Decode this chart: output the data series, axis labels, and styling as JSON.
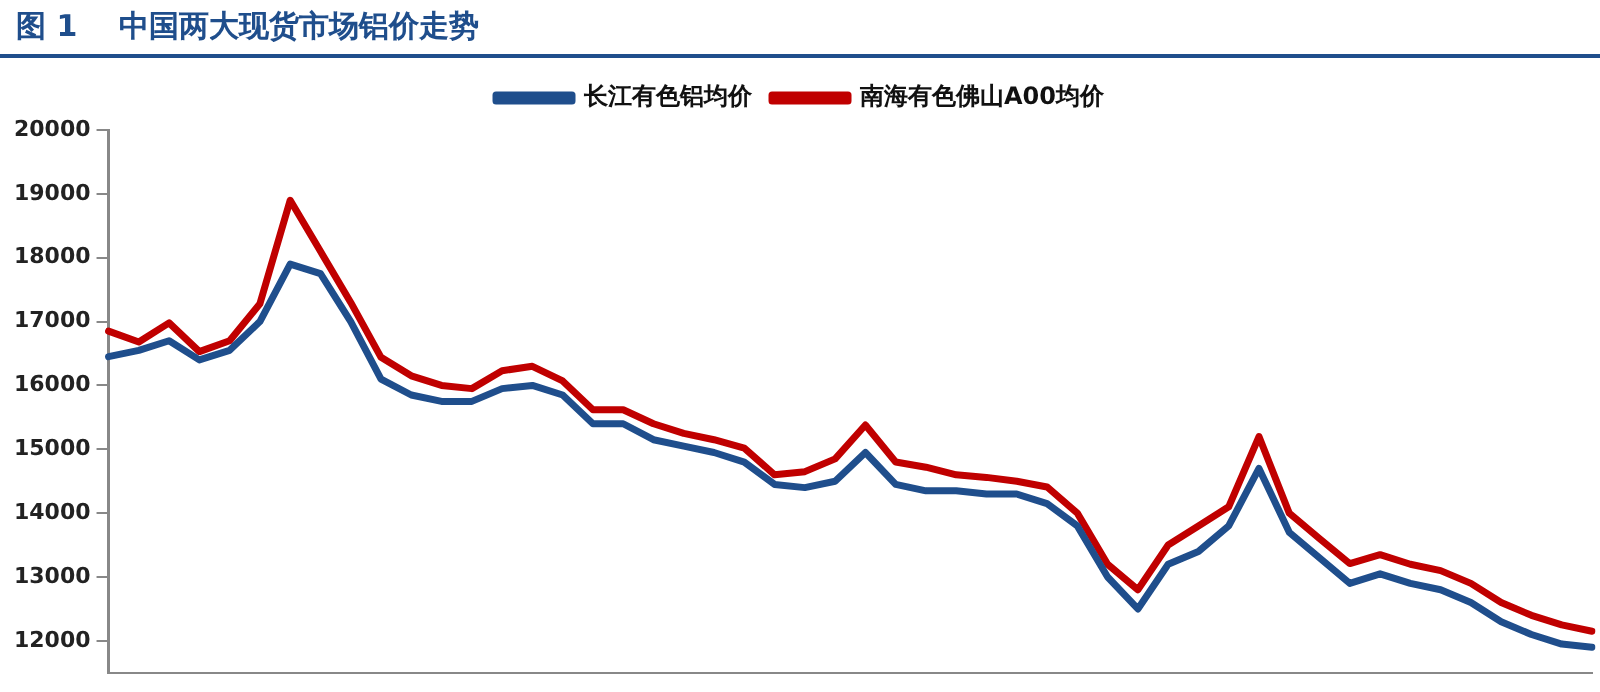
{
  "chart_data": {
    "type": "line",
    "title": "图 1    中国两大现货市场铝价走势",
    "categories": [
      null,
      null,
      null,
      null,
      null,
      null,
      null,
      null,
      null,
      null,
      null,
      null,
      null,
      null,
      null,
      null,
      null,
      null,
      null,
      null,
      null,
      null,
      null,
      null,
      null,
      null,
      null,
      null,
      null,
      null,
      null,
      null,
      null,
      null,
      null,
      null,
      null,
      null,
      null,
      null,
      null,
      null,
      null,
      null,
      null,
      null,
      null,
      null,
      null,
      null
    ],
    "series": [
      {
        "name": "长江有色铝均价",
        "color": "#1f4e8c",
        "values": [
          16450,
          16550,
          16700,
          16400,
          16550,
          17000,
          17900,
          17750,
          17000,
          16100,
          15850,
          15750,
          15750,
          15950,
          16000,
          15850,
          15400,
          15400,
          15150,
          15050,
          14950,
          14800,
          14450,
          14400,
          14500,
          14950,
          14450,
          14350,
          14350,
          14300,
          14300,
          14150,
          13800,
          13000,
          12500,
          13200,
          13400,
          13800,
          14700,
          13700,
          13300,
          12900,
          13050,
          12900,
          12800,
          12600,
          12300,
          12100,
          11950,
          11900
        ]
      },
      {
        "name": "南海有色佛山A00均价",
        "color": "#c00000",
        "values": [
          16850,
          16680,
          16980,
          16530,
          16700,
          17280,
          18900,
          18100,
          17300,
          16440,
          16150,
          16000,
          15950,
          16230,
          16300,
          16070,
          15620,
          15620,
          15400,
          15250,
          15150,
          15020,
          14600,
          14650,
          14850,
          15380,
          14800,
          14720,
          14600,
          14560,
          14500,
          14410,
          14000,
          13200,
          12800,
          13500,
          13800,
          14100,
          15200,
          14000,
          13600,
          13210,
          13350,
          13200,
          13100,
          12900,
          12600,
          12400,
          12250,
          12150
        ]
      }
    ],
    "ylim": [
      11500,
      20000
    ],
    "yticks": [
      12000,
      13000,
      14000,
      15000,
      16000,
      17000,
      18000,
      19000,
      20000
    ],
    "grid": false,
    "legend": "top",
    "tick_labels": "y",
    "marker": "none",
    "line_style": "solid"
  }
}
